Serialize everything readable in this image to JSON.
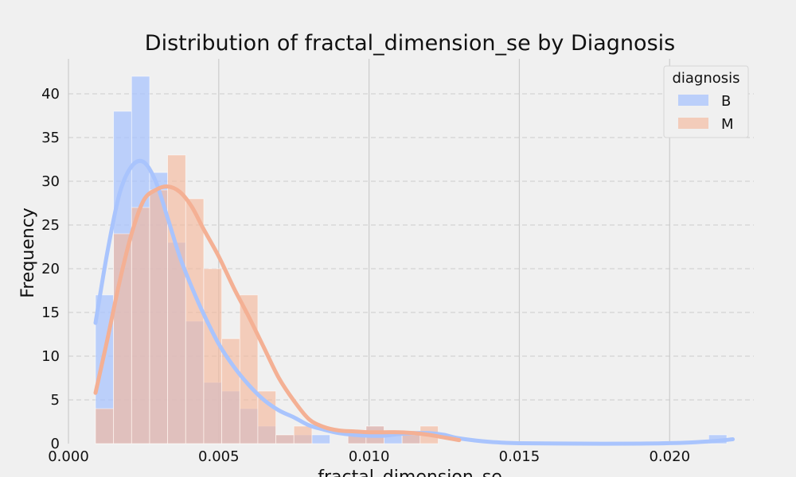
{
  "chart_data": {
    "type": "histogram",
    "title": "Distribution of fractal_dimension_se by Diagnosis",
    "xlabel": "fractal_dimension_se",
    "ylabel": "Frequency",
    "xlim": [
      0.0,
      0.0228
    ],
    "ylim": [
      0,
      44
    ],
    "x_ticks": [
      0.0,
      0.005,
      0.01,
      0.015,
      0.02
    ],
    "x_tick_labels": [
      "0.000",
      "0.005",
      "0.010",
      "0.015",
      "0.020"
    ],
    "y_ticks": [
      0,
      5,
      10,
      15,
      20,
      25,
      30,
      35,
      40
    ],
    "y_tick_labels": [
      "0",
      "5",
      "10",
      "15",
      "20",
      "25",
      "30",
      "35",
      "40"
    ],
    "grid": true,
    "bin_start": 0.0009,
    "bin_width": 0.0006,
    "legend": {
      "title": "diagnosis",
      "placement": "top-right"
    },
    "series": [
      {
        "name": "B",
        "color": "#a9c4fd",
        "line_color": "#a9c4fd",
        "counts": [
          17,
          38,
          42,
          31,
          23,
          14,
          7,
          6,
          4,
          2,
          1,
          1,
          1,
          0,
          1,
          2,
          1,
          1,
          0,
          0,
          0,
          0,
          0,
          0,
          0,
          0,
          0,
          0,
          0,
          0,
          0,
          0,
          0,
          0,
          1
        ],
        "kde": [
          [
            0.0009,
            13.8
          ],
          [
            0.0013,
            22.0
          ],
          [
            0.0017,
            28.6
          ],
          [
            0.0021,
            31.7
          ],
          [
            0.0025,
            32.2
          ],
          [
            0.0029,
            30.0
          ],
          [
            0.0033,
            25.8
          ],
          [
            0.0037,
            21.4
          ],
          [
            0.0041,
            17.9
          ],
          [
            0.0045,
            14.8
          ],
          [
            0.005,
            11.4
          ],
          [
            0.0055,
            8.8
          ],
          [
            0.006,
            6.7
          ],
          [
            0.0065,
            5.0
          ],
          [
            0.007,
            3.8
          ],
          [
            0.0075,
            3.0
          ],
          [
            0.008,
            2.1
          ],
          [
            0.0085,
            1.6
          ],
          [
            0.009,
            1.2
          ],
          [
            0.0095,
            1.0
          ],
          [
            0.01,
            0.9
          ],
          [
            0.0105,
            0.9
          ],
          [
            0.011,
            1.1
          ],
          [
            0.0115,
            1.2
          ],
          [
            0.012,
            1.2
          ],
          [
            0.0125,
            1.0
          ],
          [
            0.013,
            0.6
          ],
          [
            0.014,
            0.2
          ],
          [
            0.015,
            0.05
          ],
          [
            0.017,
            0.0
          ],
          [
            0.019,
            0.0
          ],
          [
            0.0205,
            0.1
          ],
          [
            0.0215,
            0.3
          ],
          [
            0.0221,
            0.5
          ]
        ]
      },
      {
        "name": "M",
        "color": "#f4b89c",
        "line_color": "#f4b094",
        "counts": [
          4,
          24,
          27,
          29,
          33,
          28,
          20,
          12,
          17,
          6,
          1,
          2,
          0,
          0,
          1,
          2,
          0,
          1,
          2,
          0,
          0,
          0,
          0,
          0,
          0,
          0,
          0,
          0,
          0,
          0,
          0,
          0,
          0,
          0,
          0
        ],
        "kde": [
          [
            0.0009,
            5.8
          ],
          [
            0.0013,
            12.0
          ],
          [
            0.0017,
            18.5
          ],
          [
            0.0021,
            24.0
          ],
          [
            0.0025,
            27.8
          ],
          [
            0.0029,
            29.0
          ],
          [
            0.0033,
            29.4
          ],
          [
            0.0037,
            28.8
          ],
          [
            0.0041,
            27.1
          ],
          [
            0.0045,
            24.5
          ],
          [
            0.005,
            21.4
          ],
          [
            0.0055,
            17.8
          ],
          [
            0.006,
            14.5
          ],
          [
            0.0065,
            11.0
          ],
          [
            0.007,
            7.5
          ],
          [
            0.0075,
            4.9
          ],
          [
            0.008,
            2.8
          ],
          [
            0.0085,
            1.9
          ],
          [
            0.009,
            1.5
          ],
          [
            0.0095,
            1.4
          ],
          [
            0.01,
            1.3
          ],
          [
            0.0105,
            1.3
          ],
          [
            0.011,
            1.3
          ],
          [
            0.0115,
            1.2
          ],
          [
            0.012,
            1.0
          ],
          [
            0.0125,
            0.7
          ],
          [
            0.013,
            0.4
          ]
        ]
      }
    ]
  }
}
